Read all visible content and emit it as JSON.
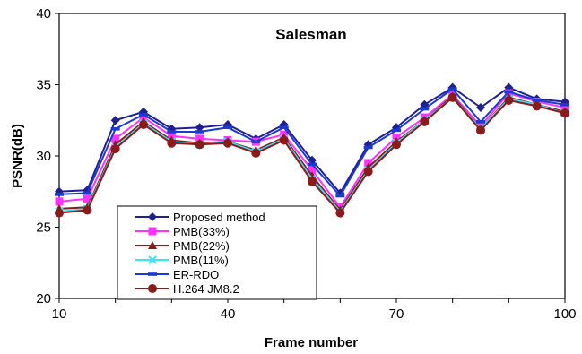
{
  "chart_data": {
    "type": "line",
    "title": "Salesman",
    "xlabel": "Frame number",
    "ylabel": "PSNR(dB)",
    "xlim": [
      10,
      100
    ],
    "ylim": [
      20,
      40
    ],
    "x_ticks": [
      10,
      40,
      70,
      100
    ],
    "y_ticks": [
      20,
      25,
      30,
      35,
      40
    ],
    "grid": false,
    "legend_position": "bottom-left",
    "x": [
      10,
      15,
      20,
      25,
      30,
      35,
      40,
      45,
      50,
      55,
      60,
      65,
      70,
      75,
      80,
      85,
      90,
      95,
      100
    ],
    "series": [
      {
        "name": "Proposed method",
        "color": "#1f1f8f",
        "marker": "diamond",
        "values": [
          27.5,
          27.6,
          32.5,
          33.1,
          31.9,
          32.0,
          32.2,
          31.2,
          32.2,
          29.7,
          27.4,
          30.8,
          32.0,
          33.6,
          34.8,
          33.4,
          34.8,
          34.0,
          33.8
        ]
      },
      {
        "name": "PMB(33%)",
        "color": "#ff33ff",
        "marker": "square",
        "values": [
          26.8,
          27.0,
          31.2,
          32.7,
          31.4,
          31.2,
          31.1,
          31.0,
          31.5,
          29.0,
          26.4,
          29.5,
          31.3,
          32.7,
          34.3,
          32.1,
          34.4,
          33.8,
          33.4
        ]
      },
      {
        "name": "PMB(22%)",
        "color": "#8b1a1a",
        "marker": "triangle",
        "values": [
          26.3,
          26.4,
          30.8,
          32.4,
          31.1,
          30.9,
          31.0,
          30.4,
          31.3,
          28.6,
          26.2,
          29.2,
          31.0,
          32.5,
          34.2,
          31.9,
          34.1,
          33.6,
          33.1
        ]
      },
      {
        "name": "PMB(11%)",
        "color": "#33e6ff",
        "marker": "x",
        "values": [
          26.1,
          26.3,
          30.6,
          32.3,
          31.0,
          30.8,
          31.0,
          30.3,
          31.2,
          28.4,
          26.1,
          29.0,
          30.9,
          32.5,
          34.1,
          31.9,
          34.0,
          33.6,
          33.0
        ]
      },
      {
        "name": "ER-RDO",
        "color": "#1a3ad6",
        "marker": "dash",
        "values": [
          27.3,
          27.4,
          31.9,
          32.9,
          31.7,
          31.7,
          32.0,
          31.0,
          32.0,
          29.4,
          27.2,
          30.6,
          31.8,
          33.3,
          34.7,
          32.4,
          34.5,
          33.9,
          33.6
        ]
      },
      {
        "name": "H.264 JM8.2",
        "color": "#8b1a1a",
        "marker": "circle",
        "values": [
          26.0,
          26.2,
          30.5,
          32.2,
          30.9,
          30.8,
          30.9,
          30.2,
          31.1,
          28.2,
          26.0,
          28.9,
          30.8,
          32.4,
          34.1,
          31.8,
          33.9,
          33.5,
          33.0
        ]
      }
    ]
  }
}
